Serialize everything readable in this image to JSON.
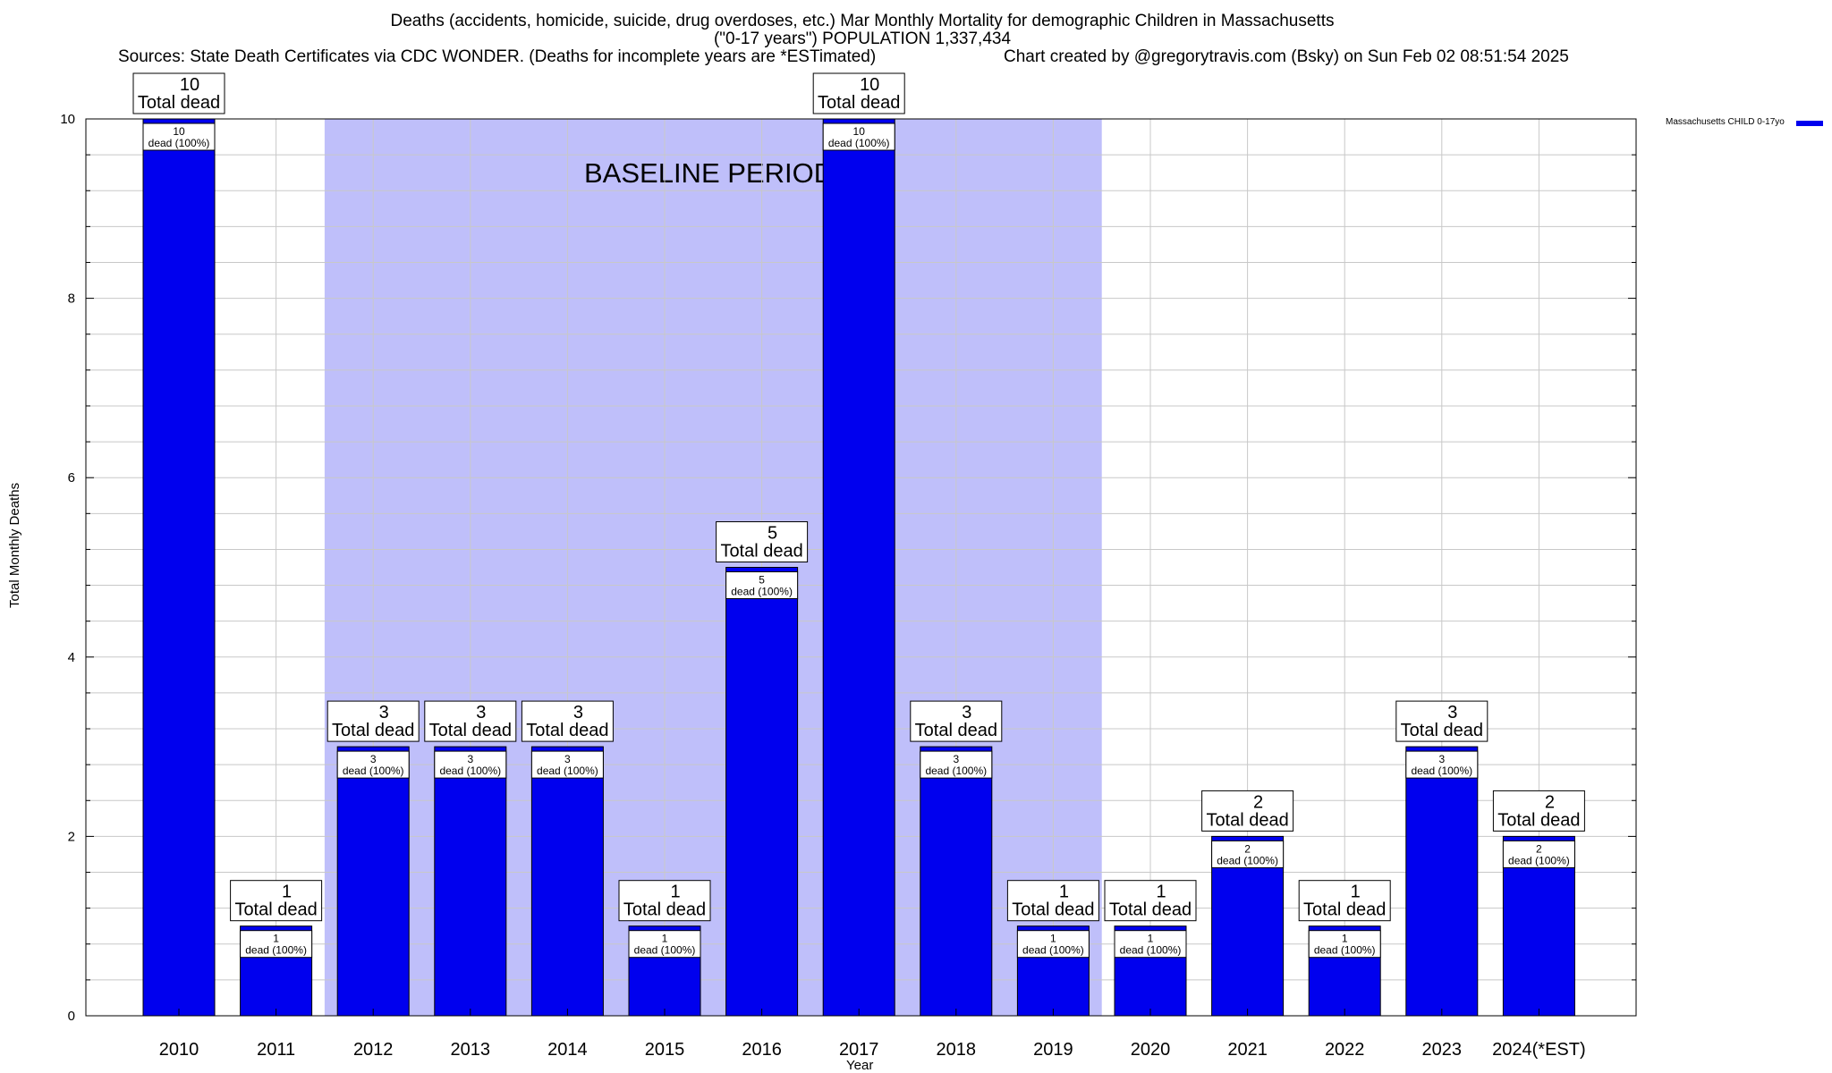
{
  "header": {
    "title": "Deaths (accidents, homicide, suicide, drug overdoses, etc.) Mar Monthly Mortality for demographic Children in Massachusetts",
    "subtitle": "(\"0-17 years\") POPULATION 1,337,434",
    "sources": "Sources: State Death Certificates via CDC WONDER. (Deaths for incomplete years are *ESTimated)",
    "credit": "Chart created by @gregorytravis.com (Bsky) on Sun Feb 02 08:51:54 2025"
  },
  "chart_data": {
    "type": "bar",
    "categories": [
      "2010",
      "2011",
      "2012",
      "2013",
      "2014",
      "2015",
      "2016",
      "2017",
      "2018",
      "2019",
      "2020",
      "2021",
      "2022",
      "2023",
      "2024(*EST)"
    ],
    "series": [
      {
        "name": "Massachusetts CHILD 0-17yo",
        "values": [
          10,
          1,
          3,
          3,
          3,
          1,
          5,
          10,
          3,
          1,
          1,
          2,
          1,
          3,
          2
        ],
        "color": "#0000ee"
      }
    ],
    "ylabel": "Total Monthly Deaths",
    "xlabel": "Year",
    "ylim": [
      0,
      10
    ],
    "yticks": [
      0,
      2,
      4,
      6,
      8,
      10
    ],
    "grid": true,
    "legend_position": "top-right",
    "annotation": {
      "text": "BASELINE PERIOD",
      "from": "2012",
      "to": "2019",
      "color": "#bfbffa"
    },
    "top_label_suffix": "Total dead",
    "inner_label_suffix": "dead (100%)"
  }
}
